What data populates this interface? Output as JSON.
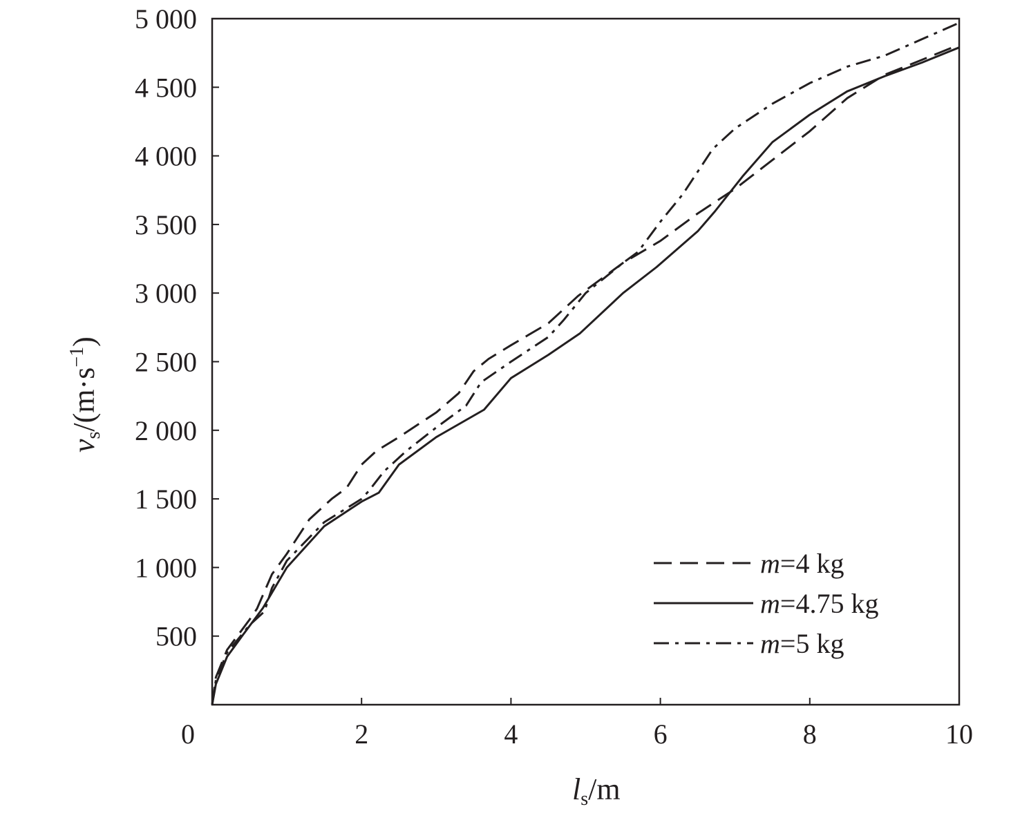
{
  "chart_data": {
    "type": "line",
    "title": "",
    "xlabel": {
      "main": "l",
      "sub": "s",
      "unit": "/m"
    },
    "ylabel": {
      "main": "v",
      "sub": "s",
      "unit": "/(m·s",
      "sup": "−1",
      "close": ")"
    },
    "xlim": [
      0,
      10
    ],
    "ylim": [
      0,
      5000
    ],
    "xticks": [
      0,
      2,
      4,
      6,
      8,
      10
    ],
    "xtick_labels": [
      "0",
      "2",
      "4",
      "6",
      "8",
      "10"
    ],
    "yticks": [
      500,
      1000,
      1500,
      2000,
      2500,
      3000,
      3500,
      4000,
      4500,
      5000
    ],
    "ytick_labels": [
      "500",
      "1 000",
      "1 500",
      "2 000",
      "2 500",
      "3 000",
      "3 500",
      "4 000",
      "4 500",
      "5 000"
    ],
    "grid": false,
    "legend_position": "bottom-right",
    "line_color": "#231f20",
    "series": [
      {
        "name": "m=4 kg",
        "label_italic": "m",
        "label_rest": "=4 kg",
        "style": "dashed",
        "x": [
          0,
          0.05,
          0.2,
          0.5,
          0.6,
          0.8,
          1.0,
          1.3,
          1.6,
          1.8,
          2.0,
          2.2,
          2.5,
          3.0,
          3.3,
          3.5,
          3.7,
          4.0,
          4.5,
          4.9,
          5.5,
          6.0,
          6.5,
          7.0,
          7.5,
          8.0,
          8.5,
          9.0,
          9.5,
          10
        ],
        "y": [
          0,
          200,
          400,
          620,
          700,
          950,
          1100,
          1350,
          1500,
          1580,
          1750,
          1850,
          1950,
          2130,
          2270,
          2430,
          2520,
          2620,
          2780,
          2980,
          3220,
          3380,
          3580,
          3760,
          3970,
          4180,
          4420,
          4590,
          4700,
          4810
        ]
      },
      {
        "name": "m=4.75 kg",
        "label_italic": "m",
        "label_rest": "=4.75 kg",
        "style": "solid",
        "x": [
          0,
          0.05,
          0.2,
          0.4,
          0.68,
          1.0,
          1.5,
          2.0,
          2.23,
          2.5,
          3.0,
          3.64,
          4.0,
          4.5,
          4.92,
          5.5,
          5.95,
          6.5,
          6.73,
          7.1,
          7.5,
          8.0,
          8.5,
          9.0,
          9.5,
          10
        ],
        "y": [
          0,
          150,
          350,
          500,
          705,
          1000,
          1300,
          1480,
          1545,
          1750,
          1950,
          2150,
          2380,
          2550,
          2705,
          3000,
          3190,
          3450,
          3595,
          3850,
          4100,
          4300,
          4470,
          4580,
          4680,
          4790
        ]
      },
      {
        "name": "m=5 kg",
        "label_italic": "m",
        "label_rest": "=5 kg",
        "style": "dashdot",
        "x": [
          0,
          0.05,
          0.2,
          0.5,
          0.7,
          0.8,
          1.0,
          1.5,
          2.0,
          2.1,
          2.3,
          2.6,
          3.0,
          3.4,
          3.6,
          4.0,
          4.5,
          4.7,
          5.0,
          5.5,
          5.7,
          6.0,
          6.3,
          6.7,
          7.0,
          7.5,
          8.0,
          8.5,
          9.0,
          9.5,
          10
        ],
        "y": [
          0,
          180,
          380,
          580,
          680,
          850,
          1050,
          1330,
          1500,
          1560,
          1700,
          1850,
          2020,
          2180,
          2350,
          2500,
          2680,
          2800,
          3000,
          3220,
          3300,
          3520,
          3720,
          4050,
          4200,
          4380,
          4530,
          4650,
          4730,
          4850,
          4970
        ]
      }
    ]
  }
}
